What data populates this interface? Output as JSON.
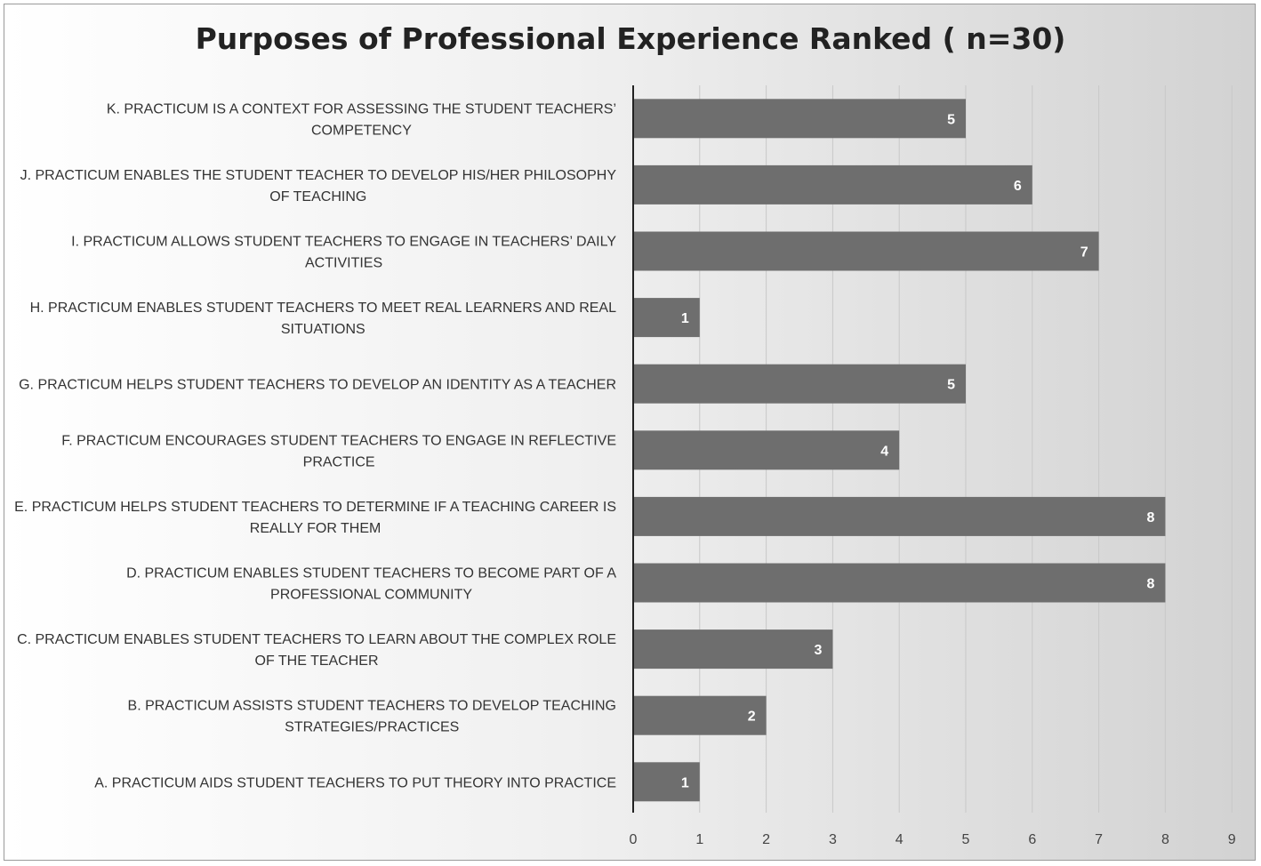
{
  "chart_data": {
    "type": "bar",
    "orientation": "horizontal",
    "title": "Purposes of Professional Experience Ranked ( n=30)",
    "xlabel": "",
    "ylabel": "",
    "xlim": [
      0,
      9
    ],
    "ticks": [
      "0",
      "1",
      "2",
      "3",
      "4",
      "5",
      "6",
      "7",
      "8",
      "9"
    ],
    "grid": true,
    "legend": "none",
    "bar_color": "#6e6e6e",
    "data_label_color": "#ffffff",
    "categories": [
      [
        "K. PRACTICUM IS A CONTEXT FOR ASSESSING THE STUDENT TEACHERS’",
        "COMPETENCY"
      ],
      [
        "J. PRACTICUM ENABLES THE STUDENT TEACHER TO DEVELOP HIS/HER PHILOSOPHY",
        "OF TEACHING"
      ],
      [
        "I. PRACTICUM ALLOWS STUDENT TEACHERS TO ENGAGE IN TEACHERS’ DAILY",
        "ACTIVITIES"
      ],
      [
        "H. PRACTICUM ENABLES STUDENT TEACHERS TO MEET REAL LEARNERS AND REAL",
        "SITUATIONS"
      ],
      [
        "G. PRACTICUM HELPS STUDENT TEACHERS TO DEVELOP AN IDENTITY AS A TEACHER"
      ],
      [
        "F. PRACTICUM ENCOURAGES STUDENT TEACHERS TO ENGAGE IN REFLECTIVE",
        "PRACTICE"
      ],
      [
        "E. PRACTICUM HELPS STUDENT TEACHERS TO DETERMINE IF A TEACHING CAREER IS",
        "REALLY FOR THEM"
      ],
      [
        "D. PRACTICUM ENABLES STUDENT TEACHERS TO BECOME PART OF A",
        "PROFESSIONAL COMMUNITY"
      ],
      [
        "C. PRACTICUM ENABLES STUDENT TEACHERS TO LEARN ABOUT THE COMPLEX ROLE",
        "OF THE TEACHER"
      ],
      [
        "B. PRACTICUM ASSISTS STUDENT TEACHERS TO DEVELOP TEACHING",
        "STRATEGIES/PRACTICES"
      ],
      [
        "A. PRACTICUM AIDS STUDENT TEACHERS TO PUT THEORY INTO PRACTICE"
      ]
    ],
    "values": [
      5,
      6,
      7,
      1,
      5,
      4,
      8,
      8,
      3,
      2,
      1
    ],
    "data_labels": [
      "5",
      "6",
      "7",
      "1",
      "5",
      "4",
      "8",
      "8",
      "3",
      "2",
      "1"
    ]
  }
}
